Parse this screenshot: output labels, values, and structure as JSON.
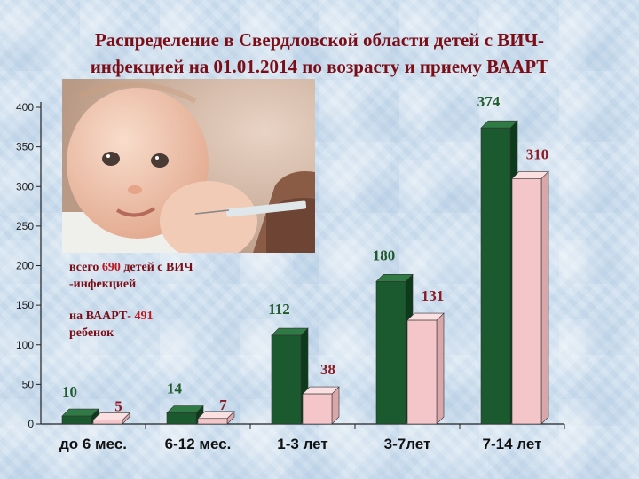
{
  "title_line1": "Распределение в Свердловской области детей с ВИЧ-",
  "title_line2": "инфекцией на 01.01.2014 по возрасту и приему ВААРТ",
  "annotation": {
    "total_prefix": "всего ",
    "total_value": "690",
    "total_suffix": " детей с ВИЧ",
    "total_line2": "-инфекцией",
    "haart_prefix": "на ВААРТ- ",
    "haart_value": "491",
    "haart_line2": "ребенок"
  },
  "photo_icon": "baby-injection-photo",
  "colors": {
    "title": "#7a0d16",
    "green_bar": "#1b5a2e",
    "pink_bar": "#f4c6c9",
    "green_label": "#1e5a2a",
    "pink_label": "#8a1a24"
  },
  "chart_data": {
    "type": "bar",
    "categories": [
      "до 6 мес.",
      "6-12 мес.",
      "1-3 лет",
      "3-7лет",
      "7-14 лет"
    ],
    "series": [
      {
        "values": [
          10,
          14,
          112,
          180,
          374
        ]
      },
      {
        "values": [
          5,
          7,
          38,
          131,
          310
        ]
      }
    ],
    "data_labels": [
      [
        "10",
        "14",
        "112",
        "180",
        "374"
      ],
      [
        "5",
        "7",
        "38",
        "131",
        "310"
      ]
    ],
    "yticks": [
      0,
      50,
      100,
      150,
      200,
      250,
      300,
      350,
      400
    ],
    "ylim": [
      0,
      400
    ],
    "grid": false,
    "legend": "none",
    "style": "3d-bar"
  }
}
